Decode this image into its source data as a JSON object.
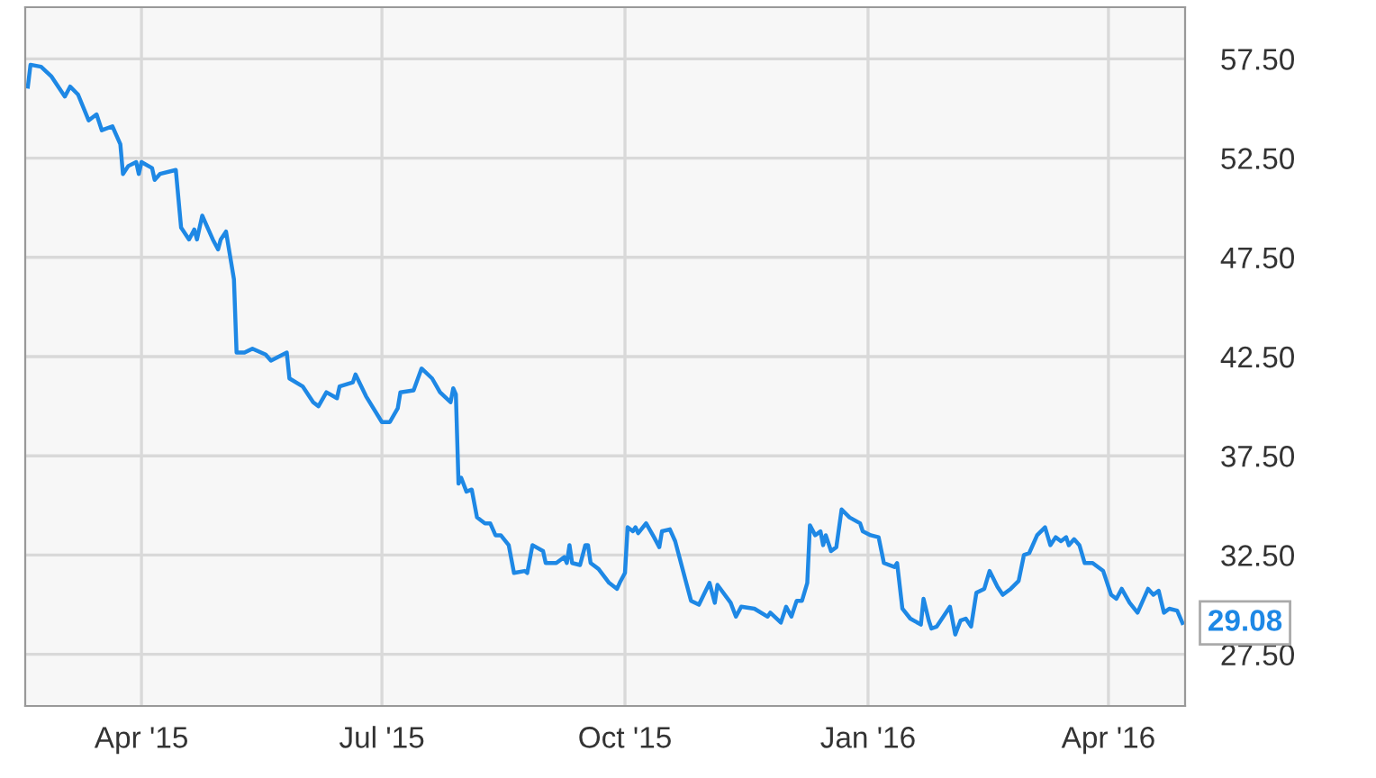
{
  "chart_data": {
    "type": "line",
    "x": [
      "2015-02-17",
      "2015-02-18",
      "2015-02-22",
      "2015-02-26",
      "2015-03-03",
      "2015-03-05",
      "2015-03-08",
      "2015-03-12",
      "2015-03-15",
      "2015-03-17",
      "2015-03-21",
      "2015-03-24",
      "2015-03-25",
      "2015-03-27",
      "2015-03-30",
      "2015-03-31",
      "2015-04-01",
      "2015-04-05",
      "2015-04-06",
      "2015-04-08",
      "2015-04-14",
      "2015-04-16",
      "2015-04-19",
      "2015-04-21",
      "2015-04-22",
      "2015-04-24",
      "2015-04-28",
      "2015-04-30",
      "2015-05-01",
      "2015-05-03",
      "2015-05-05",
      "2015-05-06",
      "2015-05-07",
      "2015-05-10",
      "2015-05-13",
      "2015-05-18",
      "2015-05-20",
      "2015-05-26",
      "2015-05-27",
      "2015-06-01",
      "2015-06-05",
      "2015-06-07",
      "2015-06-10",
      "2015-06-14",
      "2015-06-15",
      "2015-06-20",
      "2015-06-21",
      "2015-06-25",
      "2015-07-01",
      "2015-07-04",
      "2015-07-07",
      "2015-07-08",
      "2015-07-13",
      "2015-07-16",
      "2015-07-20",
      "2015-07-23",
      "2015-07-27",
      "2015-07-28",
      "2015-07-29",
      "2015-07-30",
      "2015-07-31",
      "2015-08-02",
      "2015-08-04",
      "2015-08-06",
      "2015-08-09",
      "2015-08-11",
      "2015-08-13",
      "2015-08-15",
      "2015-08-18",
      "2015-08-20",
      "2015-08-24",
      "2015-08-25",
      "2015-08-27",
      "2015-08-31",
      "2015-09-01",
      "2015-09-05",
      "2015-09-08",
      "2015-09-09",
      "2015-09-10",
      "2015-09-11",
      "2015-09-14",
      "2015-09-16",
      "2015-09-17",
      "2015-09-18",
      "2015-09-21",
      "2015-09-25",
      "2015-09-28",
      "2015-09-29",
      "2015-10-01",
      "2015-10-02",
      "2015-10-04",
      "2015-10-05",
      "2015-10-06",
      "2015-10-09",
      "2015-10-12",
      "2015-10-14",
      "2015-10-15",
      "2015-10-18",
      "2015-10-20",
      "2015-10-23",
      "2015-10-26",
      "2015-10-29",
      "2015-11-02",
      "2015-11-04",
      "2015-11-05",
      "2015-11-10",
      "2015-11-12",
      "2015-11-14",
      "2015-11-19",
      "2015-11-24",
      "2015-11-25",
      "2015-11-29",
      "2015-12-01",
      "2015-12-03",
      "2015-12-05",
      "2015-12-07",
      "2015-12-09",
      "2015-12-10",
      "2015-12-12",
      "2015-12-14",
      "2015-12-15",
      "2015-12-16",
      "2015-12-18",
      "2015-12-20",
      "2015-12-22",
      "2015-12-25",
      "2015-12-29",
      "2015-12-30",
      "2016-01-02",
      "2016-01-05",
      "2016-01-07",
      "2016-01-11",
      "2016-01-12",
      "2016-01-14",
      "2016-01-17",
      "2016-01-21",
      "2016-01-22",
      "2016-01-24",
      "2016-01-25",
      "2016-01-27",
      "2016-02-01",
      "2016-02-03",
      "2016-02-05",
      "2016-02-07",
      "2016-02-09",
      "2016-02-11",
      "2016-02-14",
      "2016-02-16",
      "2016-02-19",
      "2016-02-21",
      "2016-02-24",
      "2016-02-27",
      "2016-02-29",
      "2016-03-02",
      "2016-03-05",
      "2016-03-08",
      "2016-03-10",
      "2016-03-12",
      "2016-03-14",
      "2016-03-16",
      "2016-03-17",
      "2016-03-19",
      "2016-03-21",
      "2016-03-23",
      "2016-03-26",
      "2016-03-30",
      "2016-04-02",
      "2016-04-04",
      "2016-04-06",
      "2016-04-09",
      "2016-04-12",
      "2016-04-16",
      "2016-04-18",
      "2016-04-20",
      "2016-04-22",
      "2016-04-24",
      "2016-04-27",
      "2016-04-29"
    ],
    "series": [
      {
        "color": "#1e88e5",
        "values": [
          56.1,
          57.2,
          57.1,
          56.6,
          55.6,
          56.1,
          55.7,
          54.4,
          54.7,
          53.9,
          54.1,
          53.2,
          51.7,
          52.1,
          52.3,
          51.7,
          52.3,
          52.0,
          51.4,
          51.7,
          51.9,
          49.0,
          48.4,
          48.9,
          48.4,
          49.6,
          48.4,
          47.9,
          48.4,
          48.8,
          47.2,
          46.4,
          42.7,
          42.7,
          42.9,
          42.6,
          42.3,
          42.7,
          41.4,
          41.0,
          40.2,
          40.0,
          40.7,
          40.4,
          41.0,
          41.2,
          41.6,
          40.5,
          39.2,
          39.2,
          39.9,
          40.7,
          40.8,
          41.9,
          41.4,
          40.7,
          40.2,
          40.9,
          40.6,
          36.1,
          36.4,
          35.7,
          35.8,
          34.4,
          34.1,
          34.1,
          33.5,
          33.5,
          33.0,
          31.6,
          31.7,
          31.6,
          33.0,
          32.7,
          32.1,
          32.1,
          32.4,
          32.1,
          33.0,
          32.1,
          32.0,
          33.0,
          33.0,
          32.1,
          31.8,
          31.1,
          30.8,
          31.1,
          31.6,
          33.9,
          33.7,
          33.9,
          33.6,
          34.1,
          33.4,
          32.9,
          33.7,
          33.8,
          33.2,
          31.7,
          30.2,
          30.0,
          31.1,
          30.1,
          31.0,
          30.1,
          29.4,
          29.9,
          29.8,
          29.4,
          29.6,
          29.1,
          29.9,
          29.4,
          30.2,
          30.2,
          31.1,
          34.0,
          33.5,
          33.7,
          33.0,
          33.5,
          32.7,
          32.9,
          34.8,
          34.4,
          34.1,
          33.7,
          33.5,
          33.4,
          32.1,
          31.9,
          32.1,
          29.8,
          29.3,
          29.0,
          30.3,
          29.2,
          28.8,
          28.9,
          29.9,
          28.5,
          29.2,
          29.3,
          28.9,
          30.6,
          30.8,
          31.7,
          30.9,
          30.5,
          30.8,
          31.2,
          32.5,
          32.6,
          33.5,
          33.9,
          33.0,
          33.4,
          33.2,
          33.4,
          33.0,
          33.3,
          33.0,
          32.1,
          32.1,
          31.7,
          30.5,
          30.3,
          30.8,
          30.1,
          29.6,
          30.8,
          30.5,
          30.7,
          29.6,
          29.8,
          29.7,
          29.08
        ]
      }
    ],
    "xlim": [
      "2015-02-16",
      "2016-04-30"
    ],
    "xticks": [
      {
        "value": "2015-04-01",
        "label": "Apr '15"
      },
      {
        "value": "2015-07-01",
        "label": "Jul '15"
      },
      {
        "value": "2015-10-01",
        "label": "Oct '15"
      },
      {
        "value": "2016-01-01",
        "label": "Jan '16"
      },
      {
        "value": "2016-04-01",
        "label": "Apr '16"
      }
    ],
    "ylim": [
      24.9,
      60.1
    ],
    "yticks": [
      {
        "value": 27.5,
        "label": "27.50"
      },
      {
        "value": 32.5,
        "label": "32.50"
      },
      {
        "value": 37.5,
        "label": "37.50"
      },
      {
        "value": 42.5,
        "label": "42.50"
      },
      {
        "value": 47.5,
        "label": "47.50"
      },
      {
        "value": 52.5,
        "label": "52.50"
      },
      {
        "value": 57.5,
        "label": "57.50"
      }
    ],
    "grid": true,
    "annotations": [
      {
        "text": "29.08",
        "x": "2016-04-29",
        "y": 29.08
      }
    ]
  }
}
